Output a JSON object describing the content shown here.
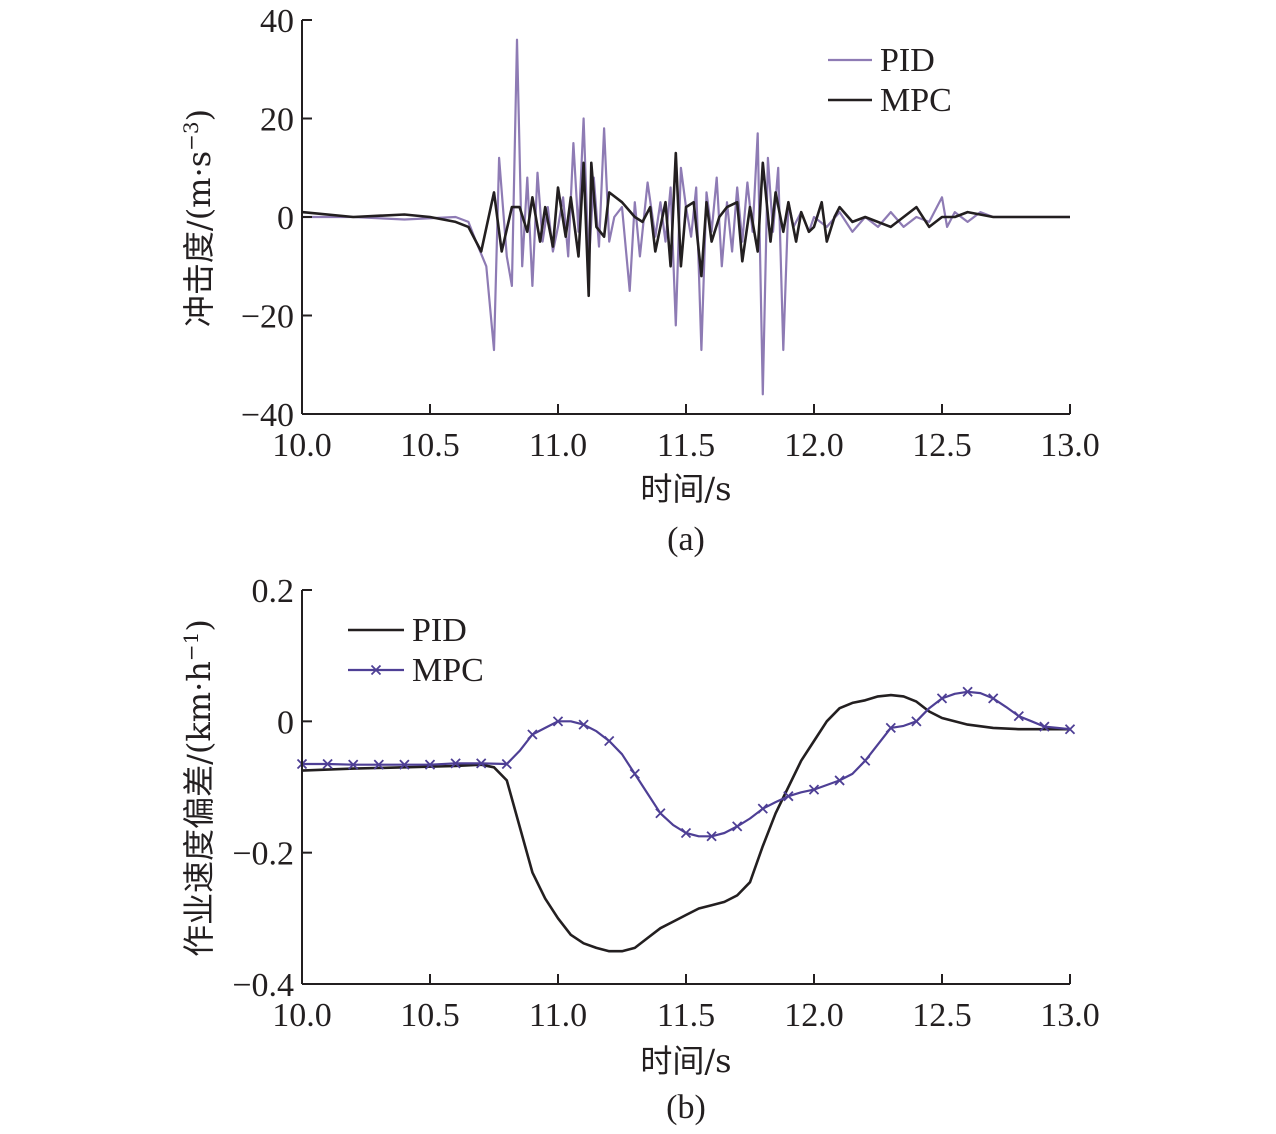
{
  "chart_data": [
    {
      "panel_label": "(a)",
      "type": "line",
      "xlabel": "时间/s",
      "ylabel": "冲击度/(m·s⁻³)",
      "ylabel_parts": {
        "main": "冲击度/(m·s",
        "sup": "−3",
        "close": ")"
      },
      "xlim": [
        10.0,
        13.0
      ],
      "ylim": [
        -40,
        40
      ],
      "x_ticks": [
        10.0,
        10.5,
        11.0,
        11.5,
        12.0,
        12.5,
        13.0
      ],
      "x_tick_labels": [
        "10.0",
        "10.5",
        "11.0",
        "11.5",
        "12.0",
        "12.5",
        "13.0"
      ],
      "y_ticks": [
        -40,
        -20,
        0,
        20,
        40
      ],
      "y_tick_labels": [
        "−40",
        "−20",
        "0",
        "20",
        "40"
      ],
      "legend_position": "top-right",
      "series": [
        {
          "name": "PID",
          "color": "#8e7bb4",
          "marker": "none",
          "x": [
            10.0,
            10.2,
            10.4,
            10.6,
            10.65,
            10.68,
            10.72,
            10.75,
            10.77,
            10.8,
            10.82,
            10.84,
            10.86,
            10.88,
            10.9,
            10.92,
            10.94,
            10.96,
            10.98,
            11.0,
            11.02,
            11.04,
            11.06,
            11.08,
            11.1,
            11.12,
            11.14,
            11.16,
            11.18,
            11.2,
            11.22,
            11.25,
            11.28,
            11.3,
            11.32,
            11.35,
            11.38,
            11.4,
            11.42,
            11.44,
            11.46,
            11.48,
            11.5,
            11.52,
            11.54,
            11.56,
            11.58,
            11.6,
            11.62,
            11.64,
            11.66,
            11.68,
            11.7,
            11.72,
            11.74,
            11.76,
            11.78,
            11.8,
            11.82,
            11.84,
            11.86,
            11.88,
            11.9,
            11.92,
            11.95,
            11.98,
            12.0,
            12.05,
            12.1,
            12.15,
            12.2,
            12.25,
            12.3,
            12.35,
            12.4,
            12.45,
            12.5,
            12.52,
            12.55,
            12.6,
            12.65,
            12.7,
            12.8,
            12.9,
            13.0
          ],
          "y": [
            0,
            0,
            -0.5,
            0,
            -1,
            -5,
            -10,
            -27,
            12,
            -8,
            -14,
            36,
            -10,
            8,
            -14,
            9,
            -5,
            2,
            -7,
            -2,
            4,
            -8,
            15,
            -3,
            20,
            -10,
            8,
            -6,
            18,
            -5,
            0,
            2,
            -15,
            3,
            -8,
            7,
            -4,
            3,
            -5,
            6,
            -22,
            10,
            2,
            -4,
            6,
            -27,
            5,
            -3,
            8,
            -10,
            3,
            -7,
            6,
            -5,
            7,
            -3,
            17,
            -36,
            12,
            -3,
            10,
            -27,
            3,
            -2,
            1,
            -3,
            0,
            -2,
            1,
            -3,
            0,
            -2,
            1,
            -2,
            0,
            -1,
            4,
            -2,
            1,
            -1,
            1,
            0,
            0,
            0,
            0
          ]
        },
        {
          "name": "MPC",
          "color": "#231f20",
          "marker": "none",
          "x": [
            10.0,
            10.2,
            10.4,
            10.5,
            10.6,
            10.65,
            10.7,
            10.75,
            10.78,
            10.82,
            10.85,
            10.88,
            10.9,
            10.93,
            10.95,
            10.98,
            11.0,
            11.03,
            11.05,
            11.08,
            11.1,
            11.12,
            11.13,
            11.15,
            11.18,
            11.2,
            11.25,
            11.3,
            11.33,
            11.36,
            11.38,
            11.42,
            11.44,
            11.46,
            11.48,
            11.5,
            11.53,
            11.56,
            11.58,
            11.6,
            11.63,
            11.66,
            11.7,
            11.72,
            11.75,
            11.78,
            11.8,
            11.83,
            11.85,
            11.88,
            11.9,
            11.93,
            11.95,
            11.98,
            12.0,
            12.03,
            12.05,
            12.08,
            12.1,
            12.15,
            12.2,
            12.3,
            12.4,
            12.45,
            12.5,
            12.55,
            12.6,
            12.7,
            12.8,
            13.0
          ],
          "y": [
            1,
            0,
            0.5,
            0,
            -1,
            -2,
            -7,
            5,
            -7,
            2,
            2,
            -3,
            4,
            -5,
            2,
            -6,
            6,
            -4,
            4,
            -8,
            11,
            -16,
            11,
            -2,
            -4,
            5,
            3,
            0,
            -1,
            2,
            -7,
            3,
            -10,
            13,
            -10,
            2,
            3,
            -12,
            3,
            -5,
            0,
            2,
            3,
            -9,
            2,
            -7,
            11,
            -5,
            5,
            -3,
            3,
            -5,
            1,
            -3,
            -2,
            3,
            -5,
            0,
            2,
            -1,
            0,
            -2,
            2,
            -2,
            0,
            0,
            1,
            0,
            0,
            0
          ]
        }
      ]
    },
    {
      "panel_label": "(b)",
      "type": "line",
      "xlabel": "时间/s",
      "ylabel": "作业速度偏差/(km·h⁻¹)",
      "ylabel_parts": {
        "main": "作业速度偏差/(km·h",
        "sup": "−1",
        "close": ")"
      },
      "xlim": [
        10.0,
        13.0
      ],
      "ylim": [
        -0.4,
        0.2
      ],
      "x_ticks": [
        10.0,
        10.5,
        11.0,
        11.5,
        12.0,
        12.5,
        13.0
      ],
      "x_tick_labels": [
        "10.0",
        "10.5",
        "11.0",
        "11.5",
        "12.0",
        "12.5",
        "13.0"
      ],
      "y_ticks": [
        -0.4,
        -0.2,
        0,
        0.2
      ],
      "y_tick_labels": [
        "−0.4",
        "−0.2",
        "0",
        "0.2"
      ],
      "legend_position": "top-left",
      "series": [
        {
          "name": "PID",
          "color": "#231f20",
          "marker": "none",
          "x": [
            10.0,
            10.2,
            10.4,
            10.6,
            10.7,
            10.75,
            10.8,
            10.85,
            10.9,
            10.95,
            11.0,
            11.05,
            11.1,
            11.15,
            11.2,
            11.25,
            11.3,
            11.35,
            11.4,
            11.45,
            11.5,
            11.55,
            11.6,
            11.65,
            11.7,
            11.75,
            11.8,
            11.85,
            11.9,
            11.95,
            12.0,
            12.05,
            12.1,
            12.15,
            12.2,
            12.25,
            12.3,
            12.35,
            12.4,
            12.45,
            12.5,
            12.6,
            12.7,
            12.8,
            12.9,
            13.0
          ],
          "y": [
            -0.075,
            -0.072,
            -0.07,
            -0.068,
            -0.066,
            -0.07,
            -0.09,
            -0.16,
            -0.23,
            -0.27,
            -0.3,
            -0.325,
            -0.338,
            -0.345,
            -0.35,
            -0.35,
            -0.345,
            -0.33,
            -0.315,
            -0.305,
            -0.295,
            -0.285,
            -0.28,
            -0.275,
            -0.265,
            -0.245,
            -0.19,
            -0.14,
            -0.1,
            -0.06,
            -0.03,
            0,
            0.02,
            0.028,
            0.032,
            0.038,
            0.04,
            0.038,
            0.03,
            0.015,
            0.005,
            -0.005,
            -0.01,
            -0.012,
            -0.012,
            -0.012
          ]
        },
        {
          "name": "MPC",
          "color": "#4e3f95",
          "marker": "x",
          "x": [
            10.0,
            10.1,
            10.2,
            10.3,
            10.4,
            10.5,
            10.6,
            10.7,
            10.8,
            10.85,
            10.9,
            10.95,
            11.0,
            11.05,
            11.1,
            11.15,
            11.2,
            11.25,
            11.3,
            11.35,
            11.4,
            11.45,
            11.5,
            11.55,
            11.6,
            11.65,
            11.7,
            11.75,
            11.8,
            11.85,
            11.9,
            11.95,
            12.0,
            12.05,
            12.1,
            12.15,
            12.2,
            12.25,
            12.3,
            12.35,
            12.4,
            12.45,
            12.5,
            12.55,
            12.6,
            12.65,
            12.7,
            12.75,
            12.8,
            12.85,
            12.9,
            12.95,
            13.0
          ],
          "y": [
            -0.065,
            -0.065,
            -0.066,
            -0.066,
            -0.066,
            -0.066,
            -0.064,
            -0.064,
            -0.065,
            -0.045,
            -0.02,
            -0.01,
            0,
            0,
            -0.005,
            -0.015,
            -0.03,
            -0.05,
            -0.08,
            -0.11,
            -0.14,
            -0.158,
            -0.17,
            -0.175,
            -0.175,
            -0.17,
            -0.16,
            -0.148,
            -0.133,
            -0.123,
            -0.114,
            -0.108,
            -0.104,
            -0.097,
            -0.09,
            -0.08,
            -0.06,
            -0.035,
            -0.01,
            -0.007,
            0,
            0.02,
            0.035,
            0.042,
            0.045,
            0.043,
            0.035,
            0.022,
            0.008,
            0,
            -0.008,
            -0.01,
            -0.012
          ]
        }
      ]
    }
  ]
}
